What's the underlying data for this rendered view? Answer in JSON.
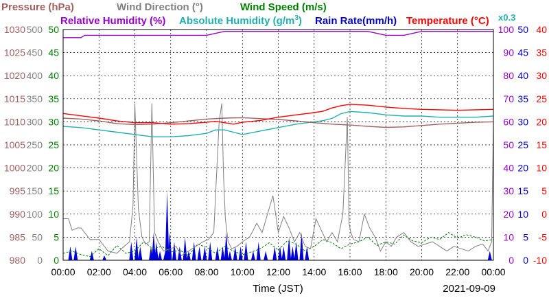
{
  "chart_data": {
    "type": "line",
    "xlabel": "Time (JST)",
    "date": "2021-09-09",
    "x_ticks": [
      "00:00",
      "02:00",
      "04:00",
      "06:00",
      "08:00",
      "10:00",
      "12:00",
      "14:00",
      "16:00",
      "18:00",
      "20:00",
      "22:00",
      "00:00"
    ],
    "legend": {
      "pressure": "Pressure (hPa)",
      "wind_direction": "Wind Direction (°)",
      "wind_speed": "Wind Speed (m/s)",
      "rh": "Relative Humidity (%)",
      "ah": "Absolute Humidity (g/m",
      "ah_sup": "3",
      "ah_close": ")",
      "rain": "Rain Rate(mm/h)",
      "temp": "Temperature (°C)",
      "scale_note": "x0.3"
    },
    "axes": {
      "pressure": {
        "ticks": [
          "1030",
          "1025",
          "1020",
          "1015",
          "1010",
          "1005",
          "1000",
          "995",
          "990",
          "985",
          "980"
        ],
        "range": [
          980,
          1030
        ],
        "color": "#a06060"
      },
      "wind_direction": {
        "ticks": [
          "500",
          "450",
          "400",
          "350",
          "300",
          "250",
          "200",
          "150",
          "100",
          "50",
          "0"
        ],
        "range": [
          0,
          500
        ],
        "color": "#808080"
      },
      "wind_speed": {
        "ticks": [
          "50",
          "45",
          "40",
          "35",
          "30",
          "25",
          "20",
          "15",
          "10",
          "5",
          "0"
        ],
        "range": [
          0,
          50
        ],
        "color": "#008000"
      },
      "rh": {
        "ticks": [
          "100",
          "90",
          "80",
          "70",
          "60",
          "50",
          "40",
          "30",
          "20",
          "10",
          "0"
        ],
        "range": [
          0,
          100
        ],
        "color": "#9900cc"
      },
      "rain": {
        "ticks": [
          "50",
          "45",
          "40",
          "35",
          "30",
          "25",
          "20",
          "15",
          "10",
          "5",
          "0"
        ],
        "range": [
          0,
          50
        ],
        "color": "#0000cc"
      },
      "temp": {
        "ticks": [
          "40",
          "35",
          "30",
          "25",
          "20",
          "15",
          "10",
          "5",
          "0",
          "-5",
          "-10"
        ],
        "range": [
          -10,
          40
        ],
        "color": "#ff0000"
      }
    },
    "colors": {
      "pressure": "#a06060",
      "wind_direction": "#808080",
      "wind_speed": "#008000",
      "rh": "#9900cc",
      "ah": "#20b0b0",
      "rain": "#0000dd",
      "temp": "#ff0000"
    },
    "series": [
      {
        "name": "Temperature (°C)",
        "key": "temp",
        "x": [
          0,
          1,
          2,
          3,
          4,
          5,
          6,
          7,
          8,
          8.5,
          9,
          9.5,
          10,
          11,
          12,
          13,
          14,
          14.5,
          15,
          15.5,
          16,
          17,
          18,
          19,
          20,
          21,
          22,
          23,
          24
        ],
        "values": [
          21.8,
          21.3,
          20.8,
          20.2,
          19.8,
          19.8,
          19.5,
          19.6,
          19.9,
          20.1,
          19.8,
          19.5,
          19.9,
          20.3,
          21.0,
          21.5,
          22.0,
          22.3,
          23.0,
          23.5,
          23.8,
          23.6,
          23.2,
          22.9,
          22.7,
          22.6,
          22.5,
          22.6,
          22.7
        ]
      },
      {
        "name": "Pressure (hPa)",
        "key": "pressure",
        "x": [
          0,
          1,
          2,
          3,
          4,
          5,
          6,
          7,
          8,
          9,
          10,
          11,
          12,
          13,
          14,
          15,
          16,
          17,
          18,
          19,
          20,
          21,
          22,
          23,
          24
        ],
        "values": [
          1010.8,
          1010.6,
          1010.2,
          1009.6,
          1009.4,
          1009.5,
          1009.8,
          1010.2,
          1010.6,
          1010.8,
          1010.9,
          1010.7,
          1010.5,
          1010.2,
          1009.8,
          1009.5,
          1009.3,
          1009.0,
          1008.8,
          1008.9,
          1009.2,
          1009.5,
          1009.7,
          1009.9,
          1010.0
        ]
      },
      {
        "name": "Absolute Humidity (g/m3)",
        "key": "ah",
        "x": [
          0,
          1,
          2,
          3,
          4,
          5,
          6,
          7,
          8,
          8.5,
          9,
          9.5,
          10,
          11,
          12,
          13,
          14,
          14.5,
          15,
          15.5,
          16,
          17,
          18,
          19,
          20,
          21,
          22,
          23,
          24
        ],
        "values": [
          58.0,
          57.5,
          56.5,
          55.5,
          54.5,
          53.5,
          53.5,
          54.0,
          55.0,
          56.5,
          56.5,
          55.5,
          54.5,
          56.0,
          57.5,
          59.0,
          60.0,
          60.5,
          61.5,
          63.5,
          64.5,
          64.0,
          63.0,
          62.5,
          62.5,
          62.0,
          62.0,
          62.0,
          62.5
        ]
      },
      {
        "name": "Relative Humidity (%)",
        "key": "rh",
        "x": [
          0,
          1,
          1.2,
          1.3,
          2,
          3,
          4,
          5,
          6,
          7,
          8,
          9,
          10,
          11,
          12,
          13,
          14,
          15,
          16,
          17,
          18,
          19,
          20,
          21,
          22,
          23,
          24
        ],
        "values": [
          96.5,
          96.5,
          97.5,
          97.5,
          97.5,
          97.5,
          97.5,
          97.5,
          97.5,
          97.5,
          97.5,
          99.2,
          99.2,
          99.2,
          99.2,
          99.2,
          99.2,
          99.2,
          99.2,
          99.2,
          97.5,
          97.5,
          99.2,
          99.2,
          99.2,
          99.2,
          99.2
        ]
      },
      {
        "name": "Wind Direction (°)",
        "key": "wind_direction",
        "x": [
          0,
          0.3,
          0.5,
          0.8,
          1.0,
          1.5,
          2.0,
          2.5,
          3.0,
          3.4,
          3.7,
          3.9,
          4.0,
          4.2,
          4.4,
          4.6,
          4.8,
          4.95,
          5.1,
          5.3,
          5.6,
          6.0,
          6.3,
          6.6,
          7.0,
          7.4,
          7.8,
          8.1,
          8.4,
          8.7,
          8.85,
          8.95,
          9.05,
          9.2,
          9.4,
          9.7,
          10.0,
          10.4,
          10.8,
          11.1,
          11.4,
          11.7,
          12.0,
          12.3,
          12.6,
          12.9,
          13.2,
          13.5,
          13.8,
          14.1,
          14.4,
          14.7,
          15.0,
          15.3,
          15.6,
          15.85,
          15.95,
          16.05,
          16.2,
          16.5,
          16.8,
          17.1,
          17.4,
          17.7,
          18.0,
          18.3,
          18.6,
          19.0,
          19.4,
          19.8,
          20.2,
          20.6,
          21.0,
          21.4,
          21.8,
          22.2,
          22.6,
          23.0,
          23.4,
          23.7,
          23.9,
          24.0
        ],
        "values": [
          90,
          90,
          65,
          70,
          70,
          45,
          45,
          20,
          15,
          30,
          40,
          120,
          340,
          110,
          50,
          35,
          40,
          340,
          60,
          40,
          20,
          25,
          30,
          10,
          20,
          30,
          40,
          45,
          60,
          300,
          340,
          180,
          90,
          40,
          25,
          30,
          40,
          50,
          80,
          60,
          100,
          140,
          60,
          95,
          70,
          40,
          60,
          30,
          25,
          90,
          65,
          40,
          60,
          40,
          100,
          310,
          80,
          60,
          45,
          40,
          100,
          70,
          50,
          20,
          40,
          30,
          50,
          60,
          40,
          30,
          35,
          40,
          30,
          20,
          30,
          25,
          20,
          30,
          35,
          20,
          40,
          300
        ]
      }
    ],
    "wind_speed": {
      "x": [
        0,
        0.5,
        1,
        1.5,
        2,
        2.5,
        3,
        3.5,
        4,
        4.5,
        5,
        5.5,
        6,
        6.5,
        7,
        7.5,
        8,
        8.5,
        9,
        9.5,
        10,
        10.5,
        11,
        11.5,
        12,
        12.5,
        13,
        13.5,
        14,
        14.5,
        15,
        15.5,
        16,
        16.5,
        17,
        17.5,
        18,
        18.5,
        19,
        19.5,
        20,
        20.5,
        21,
        21.5,
        22,
        22.5,
        23,
        23.5,
        24
      ],
      "values": [
        1.5,
        2.0,
        1.2,
        0.8,
        2.5,
        1.0,
        3.2,
        1.5,
        2.0,
        4.0,
        2.5,
        3.0,
        1.8,
        2.2,
        1.0,
        3.5,
        2.8,
        1.5,
        3.0,
        2.0,
        1.2,
        1.8,
        2.5,
        3.8,
        2.2,
        4.2,
        3.5,
        2.0,
        3.0,
        4.5,
        3.8,
        2.5,
        3.5,
        4.0,
        5.0,
        3.2,
        4.0,
        3.5,
        5.5,
        4.2,
        3.8,
        5.0,
        4.5,
        6.0,
        4.8,
        5.5,
        5.0,
        4.2,
        4.5
      ]
    },
    "rain": {
      "x": [
        0.4,
        0.7,
        1.6,
        2.3,
        3.8,
        4.1,
        4.3,
        4.9,
        5.05,
        5.2,
        5.4,
        5.7,
        5.8,
        5.95,
        6.2,
        6.5,
        6.8,
        7.0,
        7.3,
        7.6,
        7.9,
        8.2,
        8.6,
        8.9,
        9.1,
        9.3,
        9.6,
        9.9,
        10.2,
        10.6,
        10.9,
        11.3,
        11.8,
        12.1,
        12.3,
        12.6,
        12.8,
        13.0,
        13.3,
        13.6,
        23.8
      ],
      "values": [
        3,
        3,
        2,
        1,
        4,
        5,
        3,
        3,
        6,
        4,
        2,
        2,
        15,
        6,
        4,
        3,
        5,
        2,
        4,
        3,
        3,
        4,
        3,
        3,
        6,
        2,
        3,
        3,
        4,
        2,
        4,
        2,
        3,
        3,
        3,
        5,
        3,
        4,
        6,
        3,
        2
      ]
    }
  }
}
